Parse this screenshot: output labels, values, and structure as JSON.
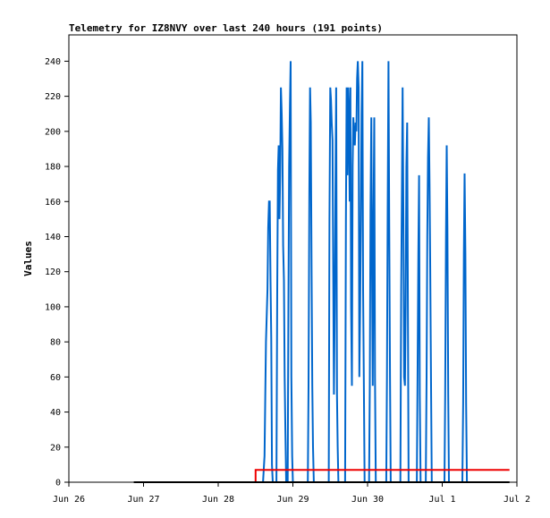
{
  "chart_data": {
    "type": "line",
    "title": "Telemetry for IZ8NVY over last 240 hours (191 points)",
    "xlabel": "",
    "ylabel": "Values",
    "xlim": [
      0,
      6
    ],
    "ylim": [
      0,
      255
    ],
    "x_ticks": [
      "Jun 26",
      "Jun 27",
      "Jun 28",
      "Jun 29",
      "Jun 30",
      "Jul 1",
      "Jul 2"
    ],
    "y_ticks": [
      0,
      20,
      40,
      60,
      80,
      100,
      120,
      140,
      160,
      180,
      200,
      220,
      240
    ],
    "grid": false,
    "legend": "none",
    "series": [
      {
        "color": "#0066cc",
        "points": [
          [
            2.6,
            0
          ],
          [
            2.62,
            15
          ],
          [
            2.63,
            48
          ],
          [
            2.64,
            80
          ],
          [
            2.66,
            110
          ],
          [
            2.67,
            145
          ],
          [
            2.68,
            160
          ],
          [
            2.69,
            160
          ],
          [
            2.7,
            115
          ],
          [
            2.71,
            82
          ],
          [
            2.72,
            10
          ],
          [
            2.73,
            0
          ],
          [
            2.78,
            0
          ],
          [
            2.79,
            110
          ],
          [
            2.8,
            178
          ],
          [
            2.81,
            192
          ],
          [
            2.82,
            150
          ],
          [
            2.83,
            175
          ],
          [
            2.84,
            225
          ],
          [
            2.85,
            210
          ],
          [
            2.86,
            190
          ],
          [
            2.87,
            135
          ],
          [
            2.88,
            115
          ],
          [
            2.89,
            60
          ],
          [
            2.9,
            30
          ],
          [
            2.91,
            0
          ],
          [
            2.93,
            0
          ],
          [
            2.94,
            100
          ],
          [
            2.95,
            180
          ],
          [
            2.96,
            215
          ],
          [
            2.97,
            240
          ],
          [
            2.98,
            60
          ],
          [
            2.99,
            15
          ],
          [
            3.0,
            0
          ],
          [
            3.2,
            0
          ],
          [
            3.21,
            55
          ],
          [
            3.22,
            165
          ],
          [
            3.23,
            225
          ],
          [
            3.24,
            205
          ],
          [
            3.25,
            120
          ],
          [
            3.26,
            55
          ],
          [
            3.27,
            20
          ],
          [
            3.28,
            0
          ],
          [
            3.48,
            0
          ],
          [
            3.49,
            150
          ],
          [
            3.5,
            225
          ],
          [
            3.51,
            218
          ],
          [
            3.52,
            205
          ],
          [
            3.53,
            195
          ],
          [
            3.54,
            120
          ],
          [
            3.55,
            50
          ],
          [
            3.56,
            100
          ],
          [
            3.57,
            168
          ],
          [
            3.58,
            225
          ],
          [
            3.59,
            50
          ],
          [
            3.6,
            20
          ],
          [
            3.61,
            0
          ],
          [
            3.7,
            0
          ],
          [
            3.71,
            150
          ],
          [
            3.72,
            225
          ],
          [
            3.73,
            175
          ],
          [
            3.74,
            225
          ],
          [
            3.75,
            210
          ],
          [
            3.76,
            160
          ],
          [
            3.77,
            225
          ],
          [
            3.78,
            100
          ],
          [
            3.79,
            55
          ],
          [
            3.8,
            180
          ],
          [
            3.81,
            208
          ],
          [
            3.82,
            195
          ],
          [
            3.83,
            192
          ],
          [
            3.84,
            205
          ],
          [
            3.85,
            200
          ],
          [
            3.86,
            230
          ],
          [
            3.87,
            240
          ],
          [
            3.88,
            225
          ],
          [
            3.89,
            60
          ],
          [
            3.9,
            100
          ],
          [
            3.91,
            150
          ],
          [
            3.92,
            210
          ],
          [
            3.93,
            240
          ],
          [
            3.94,
            110
          ],
          [
            3.95,
            60
          ],
          [
            3.96,
            0
          ],
          [
            4.02,
            0
          ],
          [
            4.03,
            55
          ],
          [
            4.04,
            155
          ],
          [
            4.05,
            208
          ],
          [
            4.06,
            120
          ],
          [
            4.07,
            55
          ],
          [
            4.08,
            155
          ],
          [
            4.09,
            208
          ],
          [
            4.1,
            60
          ],
          [
            4.11,
            0
          ],
          [
            4.25,
            0
          ],
          [
            4.26,
            60
          ],
          [
            4.27,
            155
          ],
          [
            4.28,
            240
          ],
          [
            4.29,
            150
          ],
          [
            4.3,
            60
          ],
          [
            4.31,
            0
          ],
          [
            4.44,
            0
          ],
          [
            4.45,
            110
          ],
          [
            4.46,
            165
          ],
          [
            4.47,
            225
          ],
          [
            4.48,
            150
          ],
          [
            4.49,
            60
          ],
          [
            4.5,
            55
          ],
          [
            4.51,
            100
          ],
          [
            4.52,
            180
          ],
          [
            4.53,
            205
          ],
          [
            4.54,
            100
          ],
          [
            4.55,
            0
          ],
          [
            4.66,
            0
          ],
          [
            4.67,
            60
          ],
          [
            4.68,
            130
          ],
          [
            4.69,
            175
          ],
          [
            4.7,
            50
          ],
          [
            4.71,
            0
          ],
          [
            4.78,
            0
          ],
          [
            4.79,
            60
          ],
          [
            4.8,
            140
          ],
          [
            4.81,
            185
          ],
          [
            4.82,
            208
          ],
          [
            4.83,
            170
          ],
          [
            4.84,
            120
          ],
          [
            4.85,
            55
          ],
          [
            4.86,
            0
          ],
          [
            5.03,
            0
          ],
          [
            5.04,
            50
          ],
          [
            5.05,
            140
          ],
          [
            5.06,
            192
          ],
          [
            5.07,
            145
          ],
          [
            5.08,
            50
          ],
          [
            5.09,
            0
          ],
          [
            5.27,
            0
          ],
          [
            5.28,
            45
          ],
          [
            5.29,
            130
          ],
          [
            5.3,
            176
          ],
          [
            5.31,
            130
          ],
          [
            5.32,
            45
          ],
          [
            5.33,
            0
          ]
        ]
      },
      {
        "color": "#ee0000",
        "points": [
          [
            2.5,
            0
          ],
          [
            2.5,
            7
          ],
          [
            5.9,
            7
          ]
        ]
      },
      {
        "color": "#000000",
        "points": [
          [
            0.87,
            0
          ],
          [
            5.9,
            0
          ]
        ]
      }
    ]
  }
}
